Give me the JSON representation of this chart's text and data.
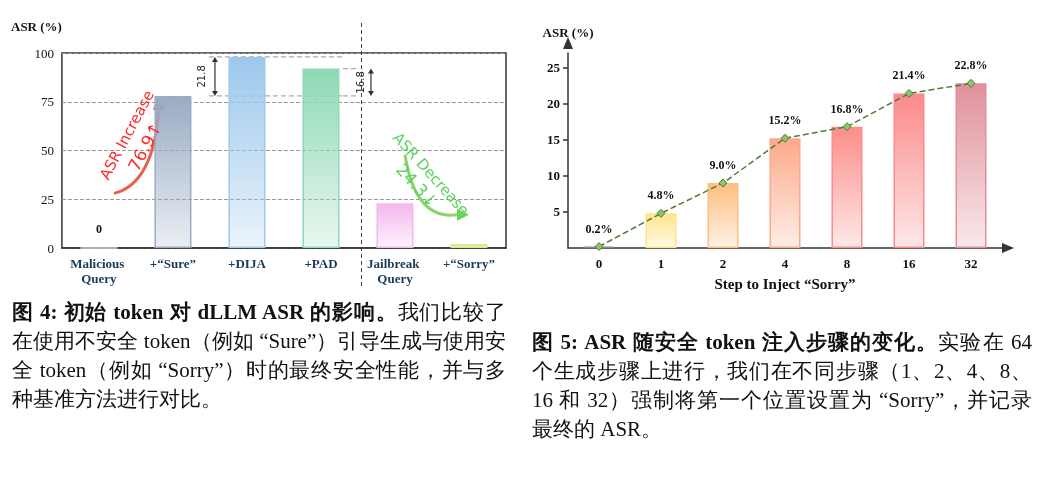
{
  "chart_data": [
    {
      "type": "bar",
      "ylabel": "ASR (%)",
      "categories": [
        "Malicious Query",
        "+“Sure”",
        "+DIJA",
        "+PAD",
        "Jailbreak Query",
        "+“Sorry”"
      ],
      "values": [
        0,
        78,
        98,
        92,
        23,
        2
      ],
      "colors": [
        "#c8d4e4",
        "#9aabc4",
        "#9cc8ec",
        "#8fd9b4",
        "#f4b8ee",
        "#d8e88a"
      ],
      "value_labels": [
        "0",
        null,
        null,
        null,
        null,
        null
      ],
      "ylim": [
        0,
        100
      ],
      "yticks": [
        0,
        25,
        50,
        75,
        100
      ],
      "grid": "y",
      "annotations": [
        "ASR Increase",
        "76.9↑",
        "ASR Decrease",
        "24.3↓",
        "21.8",
        "16.8",
        "图 4: 初始 token 对 dLLM ASR 的影响。",
        "我们比较了在使用不安全 token（例如 “Sure”）引导生成与使用安全 token（例如 “Sorry”）时的最终安全性能，并与多种基准方法进行对比。"
      ]
    },
    {
      "type": "bar",
      "ylabel": "ASR (%)",
      "xlabel": "Step to Inject “Sorry”",
      "categories": [
        "0",
        "1",
        "2",
        "4",
        "8",
        "16",
        "32"
      ],
      "ylim": [
        0,
        27
      ],
      "yticks": [
        5,
        10,
        15,
        20,
        25
      ],
      "line_style": "dashed",
      "marker": "diamond",
      "series": [
        {
          "colors": [
            "#8a8a8a",
            "#fde58a",
            "#fdbf80",
            "#fca98a",
            "#fb8e8a",
            "#fb8a8a",
            "#e0909a"
          ],
          "values": [
            0.2,
            4.8,
            9.0,
            15.2,
            16.8,
            21.4,
            22.8
          ],
          "value_labels": [
            "0.2%",
            "4.8%",
            "9.0%",
            "15.2%",
            "16.8%",
            "21.4%",
            "22.8%"
          ]
        },
        {
          "type": "line",
          "color": "#4f7a3c",
          "values": [
            0.2,
            4.8,
            9.0,
            15.2,
            16.8,
            21.4,
            22.8
          ]
        }
      ],
      "annotations": [
        "图 5: ASR 随安全 token 注入步骤的变化。",
        "实验在 64 个生成步骤上进行，我们在不同步骤（1、2、4、8、16 和 32）强制将第一个位置设置为 “Sorry”，并记录最终的 ASR。"
      ]
    }
  ]
}
